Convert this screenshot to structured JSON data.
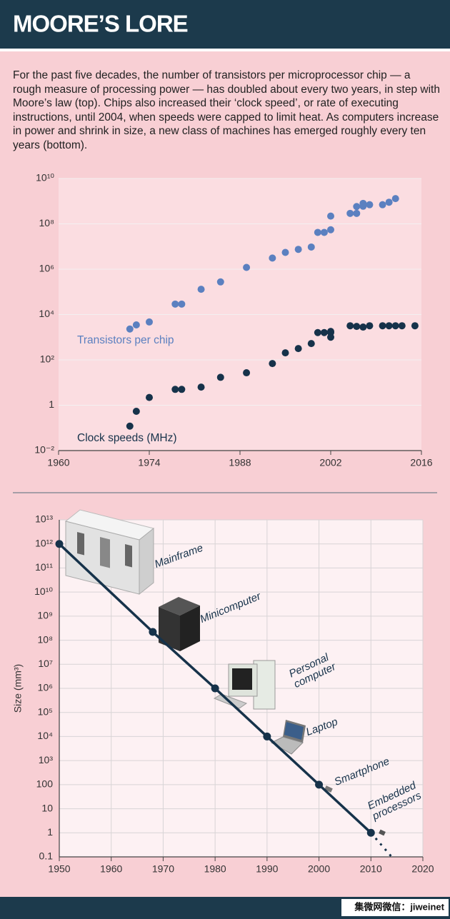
{
  "header": {
    "title": "MOORE’S LORE"
  },
  "intro": "For the past five decades, the number of transistors per microprocessor chip — a rough measure of processing power — has doubled about every two years, in step with Moore’s law (top). Chips also increased their ‘clock speed’, or rate of executing instructions, until 2004, when speeds were capped to limit heat. As computers increase in power and shrink in size, a new class of machines has emerged roughly every ten years (bottom).",
  "footer": "集微网微信：jiweinet",
  "chart_data": [
    {
      "type": "scatter",
      "ylog": true,
      "grid": "y",
      "xlim": [
        1960,
        2016
      ],
      "xticks": [
        1960,
        1974,
        1988,
        2002,
        2016
      ],
      "ylim": [
        0.01,
        10000000000
      ],
      "yticks": [
        {
          "value": 0.01,
          "label": "10⁻²"
        },
        1,
        {
          "value": 100,
          "label": "10²"
        },
        {
          "value": 10000,
          "label": "10⁴"
        },
        {
          "value": 1000000,
          "label": "10⁶"
        },
        {
          "value": 100000000,
          "label": "10⁸"
        },
        {
          "value": 10000000000,
          "label": "10¹⁰"
        }
      ],
      "series": [
        {
          "name": "Transistors per chip",
          "color": "#5b80c0",
          "x": [
            1971,
            1972,
            1974,
            1978,
            1979,
            1982,
            1985,
            1989,
            1993,
            1995,
            1997,
            1999,
            2000,
            2001,
            2002,
            2002,
            2005,
            2006,
            2006,
            2007,
            2007,
            2008,
            2010,
            2011,
            2012
          ],
          "values": [
            2300,
            3500,
            4700,
            29000,
            29000,
            130000,
            275000,
            1200000,
            3100000,
            5500000,
            7500000,
            9500000,
            42000000,
            42000000,
            55000000,
            220000000,
            290000000,
            290000000,
            580000000,
            800000000,
            600000000,
            700000000,
            700000000,
            900000000,
            1300000000
          ]
        },
        {
          "name": "Clock speeds (MHz)",
          "color": "#16324a",
          "x": [
            1971,
            1972,
            1974,
            1978,
            1979,
            1982,
            1985,
            1989,
            1993,
            1995,
            1997,
            1999,
            2000,
            2001,
            2002,
            2002,
            2002,
            2005,
            2006,
            2007,
            2008,
            2010,
            2011,
            2012,
            2013,
            2015
          ],
          "values": [
            0.12,
            0.54,
            2.2,
            5,
            5,
            6.3,
            17,
            27,
            69,
            205,
            316,
            525,
            1600,
            1600,
            1600,
            1000,
            1800,
            3200,
            3000,
            2800,
            3200,
            3200,
            3200,
            3200,
            3200,
            3200
          ]
        }
      ]
    },
    {
      "type": "line",
      "ylog": true,
      "grid": "both",
      "ylabel": "Size (mm³)",
      "xlim": [
        1950,
        2020
      ],
      "xticks": [
        1950,
        1960,
        1970,
        1980,
        1990,
        2000,
        2010,
        2020
      ],
      "ylim": [
        0.1,
        10000000000000
      ],
      "yticks": [
        0.1,
        1,
        10,
        100,
        {
          "value": 1000,
          "label": "10³"
        },
        {
          "value": 10000,
          "label": "10⁴"
        },
        {
          "value": 100000,
          "label": "10⁵"
        },
        {
          "value": 1000000,
          "label": "10⁶"
        },
        {
          "value": 10000000,
          "label": "10⁷"
        },
        {
          "value": 100000000,
          "label": "10⁸"
        },
        {
          "value": 1000000000,
          "label": "10⁹"
        },
        {
          "value": 10000000000,
          "label": "10¹⁰"
        },
        {
          "value": 100000000000,
          "label": "10¹¹"
        },
        {
          "value": 1000000000000,
          "label": "10¹²"
        },
        {
          "value": 10000000000000,
          "label": "10¹³"
        }
      ],
      "series": [
        {
          "color": "#16324a",
          "x": [
            1950,
            1968,
            1980,
            1990,
            2000,
            2010
          ],
          "values": [
            1000000000000,
            220000000,
            1000000,
            10000,
            100,
            1
          ]
        },
        {
          "color": "#16324a",
          "dashed": true,
          "x": [
            2010,
            2014
          ],
          "values": [
            1,
            0.1
          ]
        }
      ],
      "annotations": [
        "Mainframe",
        "Minicomputer",
        "Personal computer",
        "Laptop",
        "Smartphone",
        "Embedded processors"
      ]
    }
  ]
}
